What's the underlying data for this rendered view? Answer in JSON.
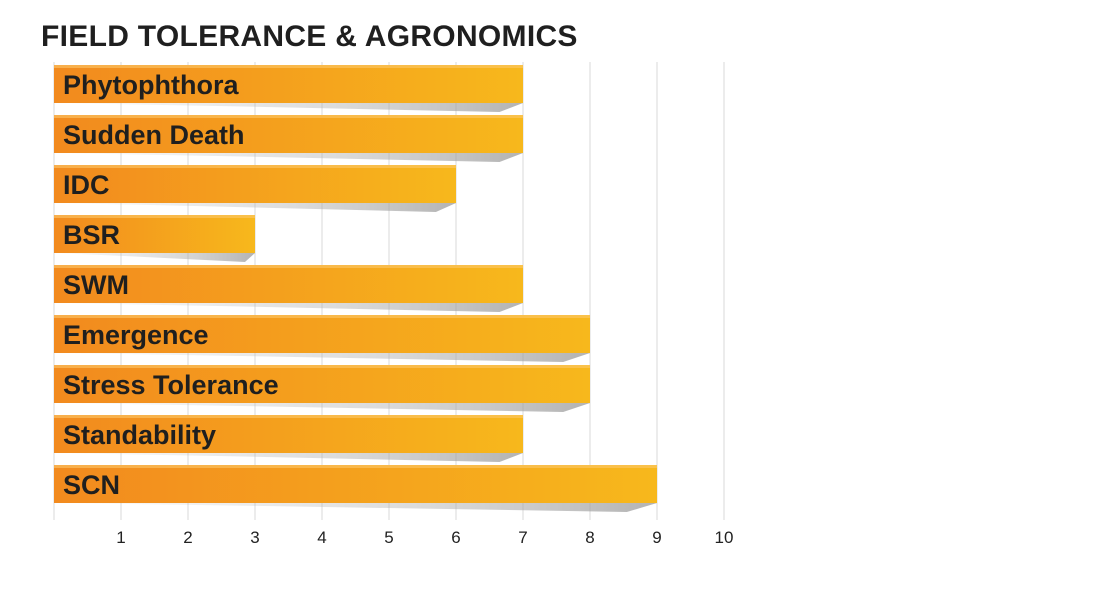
{
  "chart_data": {
    "type": "bar",
    "orientation": "horizontal",
    "title": "FIELD TOLERANCE & AGRONOMICS",
    "categories": [
      "Phytophthora",
      "Sudden Death",
      "IDC",
      "BSR",
      "SWM",
      "Emergence",
      "Stress Tolerance",
      "Standability",
      "SCN"
    ],
    "values": [
      7,
      7,
      6,
      3,
      7,
      8,
      8,
      7,
      9
    ],
    "xlim": [
      0,
      10
    ],
    "xticks": [
      1,
      2,
      3,
      4,
      5,
      6,
      7,
      8,
      9,
      10
    ],
    "grid": true,
    "colors": {
      "bar_start": "#f28a1e",
      "bar_end": "#f7b81c",
      "grid": "#d9d9d9"
    }
  }
}
